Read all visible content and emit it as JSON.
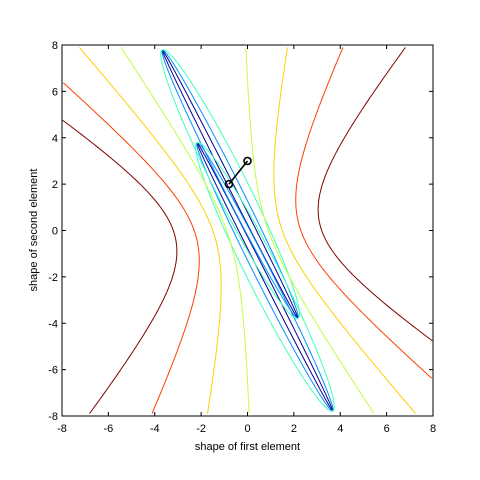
{
  "chart_data": {
    "type": "contour",
    "xlabel": "shape of first element",
    "ylabel": "shape of second element",
    "xlim": [
      -8,
      8
    ],
    "ylim": [
      -8,
      8
    ],
    "xticks": [
      -8,
      -6,
      -4,
      -2,
      0,
      2,
      4,
      6,
      8
    ],
    "yticks": [
      -8,
      -6,
      -4,
      -2,
      0,
      2,
      4,
      6,
      8
    ],
    "grid": false,
    "legend": "none",
    "colormap": [
      "#00008f",
      "#0090ff",
      "#40ffbf",
      "#c0ff40",
      "#ffcf00",
      "#ff4000",
      "#800000"
    ],
    "contour_levels": [
      {
        "color": "#00008f",
        "type": "tube",
        "centers": [
          [
            -0.75,
            2.0
          ],
          [
            0.75,
            -2.0
          ]
        ],
        "widths": [
          0.12,
          0.12
        ]
      },
      {
        "color": "#0090ff",
        "type": "tube",
        "centers": [
          [
            -0.75,
            2.0
          ],
          [
            0.75,
            -2.0
          ]
        ],
        "widths": [
          0.35,
          0.35
        ]
      },
      {
        "color": "#40ffbf",
        "type": "tube",
        "centers": [
          [
            -0.75,
            2.0
          ],
          [
            0.75,
            -2.0
          ]
        ],
        "widths": [
          0.7,
          0.7
        ]
      },
      {
        "color": "#c0ff40",
        "type": "hyperbola",
        "a": 0.9
      },
      {
        "color": "#ffcf00",
        "type": "hyperbola",
        "a": 1.5
      },
      {
        "color": "#ff4000",
        "type": "hyperbola",
        "a": 2.3
      },
      {
        "color": "#800000",
        "type": "hyperbola",
        "a": 3.2
      }
    ],
    "path": {
      "color": "#000000",
      "points": [
        [
          0.0,
          3.0
        ],
        [
          -0.8,
          2.0
        ]
      ]
    }
  }
}
